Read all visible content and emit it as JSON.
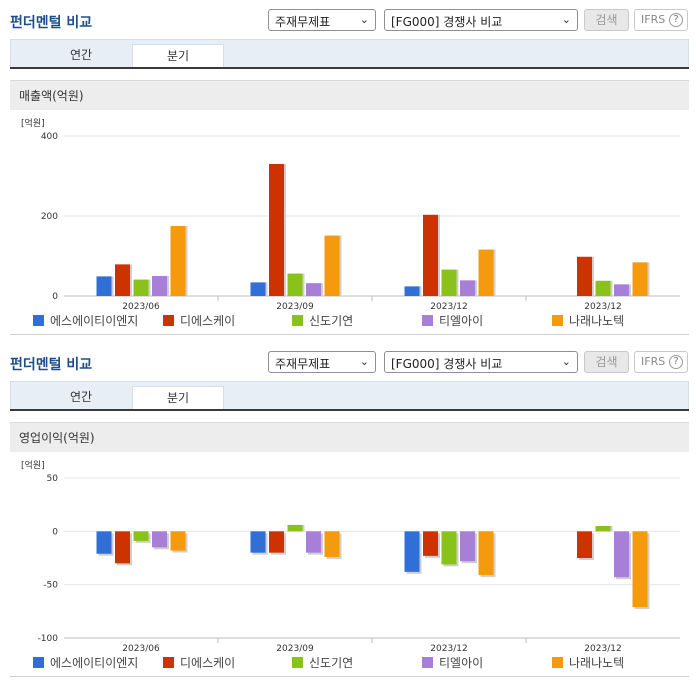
{
  "panels": [
    {
      "title": "펀더멘털 비교",
      "select_1": "주재무제표",
      "select_2": "[FG000] 경쟁사 비교",
      "search_label": "검색",
      "ifrs_label": "IFRS",
      "ifrs_help": "?",
      "tabs": [
        {
          "label": "연간"
        },
        {
          "label": "분기"
        }
      ],
      "active_tab": "분기",
      "section_title": "매출액(억원)"
    },
    {
      "title": "펀더멘털 비교",
      "select_1": "주재무제표",
      "select_2": "[FG000] 경쟁사 비교",
      "search_label": "검색",
      "ifrs_label": "IFRS",
      "ifrs_help": "?",
      "tabs": [
        {
          "label": "연간"
        },
        {
          "label": "분기"
        }
      ],
      "active_tab": "분기",
      "section_title": "영업이익(억원)"
    }
  ],
  "chevron_glyph": "⌄",
  "colors": {
    "series": [
      "#2f6fd6",
      "#cc3300",
      "#88c21b",
      "#a77fd9",
      "#f59a0c"
    ],
    "title": "#1f4e8c",
    "tabbar": "#e8eef6",
    "section_bar": "#ededed"
  },
  "chart_data": [
    {
      "type": "bar",
      "unit_label": "[억원]",
      "categories": [
        "2023/06",
        "2023/09",
        "2023/12",
        "2023/12"
      ],
      "yticks": [
        0,
        200,
        400
      ],
      "ylim": [
        0,
        400
      ],
      "grid": true,
      "legend_position": "bottom",
      "series": [
        {
          "name": "에스에이티이엔지",
          "values": [
            49,
            34,
            24,
            null
          ]
        },
        {
          "name": "디에스케이",
          "values": [
            79,
            330,
            203,
            98
          ]
        },
        {
          "name": "신도기연",
          "values": [
            41,
            56,
            66,
            38
          ]
        },
        {
          "name": "티엘아이",
          "values": [
            50,
            32,
            39,
            29
          ]
        },
        {
          "name": "나래나노텍",
          "values": [
            175,
            151,
            116,
            84
          ]
        }
      ]
    },
    {
      "type": "bar",
      "unit_label": "[억원]",
      "categories": [
        "2023/06",
        "2023/09",
        "2023/12",
        "2023/12"
      ],
      "yticks": [
        50,
        0,
        -50,
        -100
      ],
      "ylim": [
        -100,
        50
      ],
      "grid": true,
      "legend_position": "bottom",
      "series": [
        {
          "name": "에스에이티이엔지",
          "values": [
            -21,
            -20,
            -38,
            null
          ]
        },
        {
          "name": "디에스케이",
          "values": [
            -30,
            -20,
            -23,
            -25
          ]
        },
        {
          "name": "신도기연",
          "values": [
            -9,
            6,
            -31,
            5
          ]
        },
        {
          "name": "티엘아이",
          "values": [
            -15,
            -20,
            -28,
            -43
          ]
        },
        {
          "name": "나래나노텍",
          "values": [
            -18,
            -24,
            -41,
            -71
          ]
        }
      ]
    }
  ]
}
